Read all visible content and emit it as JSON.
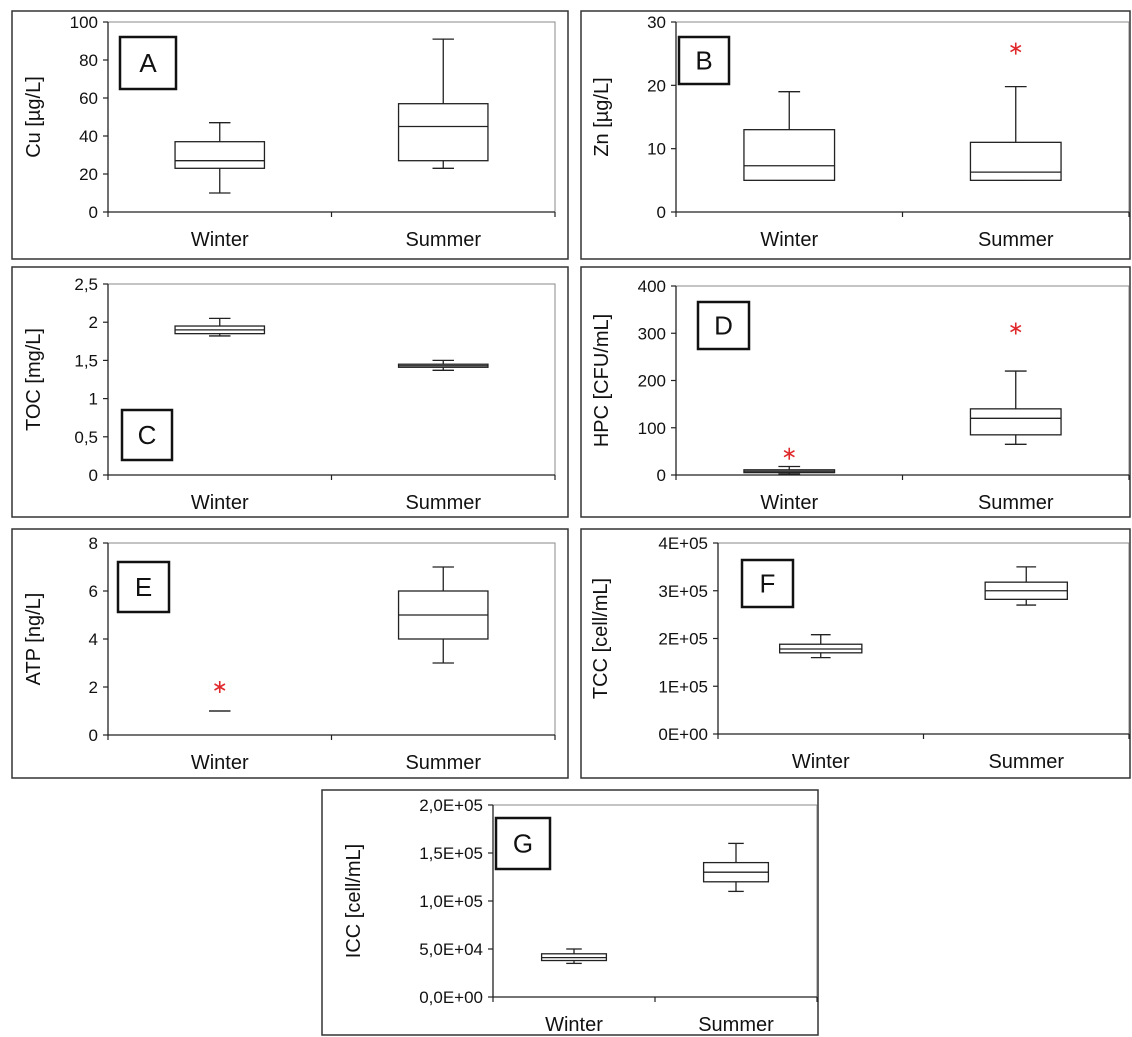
{
  "chart_data": [
    {
      "id": "A",
      "type": "box",
      "panel_label": "A",
      "ylabel": "Cu [µg/L]",
      "categories": [
        "Winter",
        "Summer"
      ],
      "yticks": [
        "0",
        "20",
        "40",
        "60",
        "80",
        "100"
      ],
      "ylim": [
        0,
        100
      ],
      "boxes": [
        {
          "category": "Winter",
          "min": 10,
          "q1": 23,
          "median": 27,
          "q3": 37,
          "max": 47
        },
        {
          "category": "Summer",
          "min": 23,
          "q1": 27,
          "median": 45,
          "q3": 57,
          "max": 91
        }
      ],
      "outliers": []
    },
    {
      "id": "B",
      "type": "box",
      "panel_label": "B",
      "ylabel": "Zn [µg/L]",
      "categories": [
        "Winter",
        "Summer"
      ],
      "yticks": [
        "0",
        "10",
        "20",
        "30"
      ],
      "ylim": [
        0,
        30
      ],
      "boxes": [
        {
          "category": "Winter",
          "min": 5,
          "q1": 5,
          "median": 7.3,
          "q3": 13,
          "max": 19
        },
        {
          "category": "Summer",
          "min": 5,
          "q1": 5,
          "median": 6.3,
          "q3": 11,
          "max": 19.8
        }
      ],
      "outliers": [
        {
          "category": "Summer",
          "value": 25.8
        }
      ]
    },
    {
      "id": "C",
      "type": "box",
      "panel_label": "C",
      "ylabel": "TOC [mg/L]",
      "categories": [
        "Winter",
        "Summer"
      ],
      "yticks": [
        "0",
        "0,5",
        "1",
        "1,5",
        "2",
        "2,5"
      ],
      "ylim": [
        0,
        2.5
      ],
      "boxes": [
        {
          "category": "Winter",
          "min": 1.82,
          "q1": 1.85,
          "median": 1.9,
          "q3": 1.95,
          "max": 2.05
        },
        {
          "category": "Summer",
          "min": 1.37,
          "q1": 1.41,
          "median": 1.43,
          "q3": 1.45,
          "max": 1.5
        }
      ],
      "outliers": []
    },
    {
      "id": "D",
      "type": "box",
      "panel_label": "D",
      "ylabel": "HPC [CFU/mL]",
      "categories": [
        "Winter",
        "Summer"
      ],
      "yticks": [
        "0",
        "100",
        "200",
        "300",
        "400"
      ],
      "ylim": [
        0,
        400
      ],
      "boxes": [
        {
          "category": "Winter",
          "min": 2,
          "q1": 5,
          "median": 8,
          "q3": 11,
          "max": 18
        },
        {
          "category": "Summer",
          "min": 65,
          "q1": 85,
          "median": 120,
          "q3": 140,
          "max": 220
        }
      ],
      "outliers": [
        {
          "category": "Winter",
          "value": 45
        },
        {
          "category": "Summer",
          "value": 310
        }
      ]
    },
    {
      "id": "E",
      "type": "box",
      "panel_label": "E",
      "ylabel": "ATP [ng/L]",
      "categories": [
        "Winter",
        "Summer"
      ],
      "yticks": [
        "0",
        "2",
        "4",
        "6",
        "8"
      ],
      "ylim": [
        0,
        8
      ],
      "boxes": [
        {
          "category": "Winter",
          "min": 1,
          "q1": 1,
          "median": 1,
          "q3": 1,
          "max": 1
        },
        {
          "category": "Summer",
          "min": 3,
          "q1": 4,
          "median": 5,
          "q3": 6,
          "max": 7
        }
      ],
      "outliers": [
        {
          "category": "Winter",
          "value": 2
        }
      ]
    },
    {
      "id": "F",
      "type": "box",
      "panel_label": "F",
      "ylabel": "TCC [cell/mL]",
      "categories": [
        "Winter",
        "Summer"
      ],
      "yticks": [
        "0E+00",
        "1E+05",
        "2E+05",
        "3E+05",
        "4E+05"
      ],
      "ylim": [
        0,
        400000
      ],
      "boxes": [
        {
          "category": "Winter",
          "min": 160000,
          "q1": 170000,
          "median": 178000,
          "q3": 188000,
          "max": 208000
        },
        {
          "category": "Summer",
          "min": 270000,
          "q1": 282000,
          "median": 300000,
          "q3": 318000,
          "max": 350000
        }
      ],
      "outliers": []
    },
    {
      "id": "G",
      "type": "box",
      "panel_label": "G",
      "ylabel": "ICC [cell/mL]",
      "categories": [
        "Winter",
        "Summer"
      ],
      "yticks": [
        "0,0E+00",
        "5,0E+04",
        "1,0E+05",
        "1,5E+05",
        "2,0E+05"
      ],
      "ylim": [
        0,
        200000
      ],
      "boxes": [
        {
          "category": "Winter",
          "min": 35000,
          "q1": 38000,
          "median": 41000,
          "q3": 45000,
          "max": 50000
        },
        {
          "category": "Summer",
          "min": 110000,
          "q1": 120000,
          "median": 130000,
          "q3": 140000,
          "max": 160000
        }
      ],
      "outliers": []
    }
  ],
  "colors": {
    "stroke": "#222222",
    "outlier": "#e0292b",
    "panel_border": "#333333",
    "axis_text": "#111111"
  }
}
